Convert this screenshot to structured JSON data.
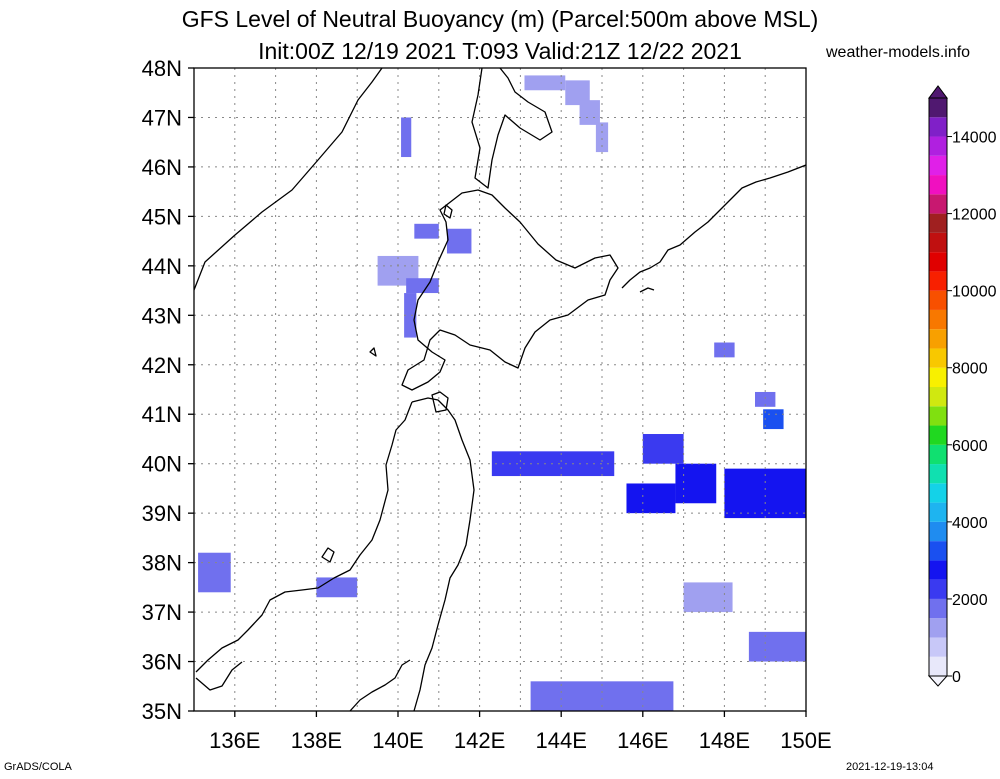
{
  "title_line1": "GFS Level of Neutral Buoyancy (m) (Parcel:500m above MSL)",
  "title_line2": "Init:00Z 12/19 2021 T:093 Valid:21Z 12/22 2021",
  "credit": "weather-models.info",
  "footer_left": "GrADS/COLA",
  "footer_right": "2021-12-19-13:04",
  "map": {
    "lon_range": [
      135,
      150
    ],
    "lat_range": [
      35,
      48
    ],
    "lat_labels": [
      "35N",
      "36N",
      "37N",
      "38N",
      "39N",
      "40N",
      "41N",
      "42N",
      "43N",
      "44N",
      "45N",
      "46N",
      "47N",
      "48N"
    ],
    "lon_labels": [
      "136E",
      "138E",
      "140E",
      "142E",
      "144E",
      "146E",
      "148E",
      "150E"
    ]
  },
  "colorbar": {
    "labels": [
      "0",
      "2000",
      "4000",
      "6000",
      "8000",
      "10000",
      "12000",
      "14000"
    ],
    "colors": [
      "#e8e8fa",
      "#c8c8f8",
      "#a0a0f0",
      "#7070ee",
      "#3a3af0",
      "#1414f0",
      "#1a50f0",
      "#1f8cf0",
      "#1eb4f0",
      "#14d2e8",
      "#10e0b0",
      "#10e070",
      "#20d820",
      "#80e010",
      "#d0e810",
      "#f8f000",
      "#f8c800",
      "#f8a000",
      "#f87800",
      "#f85000",
      "#f82000",
      "#e00000",
      "#c01010",
      "#a02020",
      "#c81870",
      "#f010c0",
      "#e020e8",
      "#b020e0",
      "#8020c8",
      "#501870"
    ]
  },
  "chart_data": {
    "type": "heatmap",
    "units": "m",
    "value_range": [
      0,
      15000
    ],
    "cells_deg": [
      {
        "lon": 143.6,
        "lat": 47.7,
        "w": 1.0,
        "h": 0.3,
        "value": 1400
      },
      {
        "lon": 144.4,
        "lat": 47.5,
        "w": 0.6,
        "h": 0.5,
        "value": 1300
      },
      {
        "lon": 144.7,
        "lat": 47.1,
        "w": 0.5,
        "h": 0.5,
        "value": 1300
      },
      {
        "lon": 145.0,
        "lat": 46.6,
        "w": 0.3,
        "h": 0.6,
        "value": 1300
      },
      {
        "lon": 140.2,
        "lat": 46.6,
        "w": 0.25,
        "h": 0.8,
        "value": 1500
      },
      {
        "lon": 140.7,
        "lat": 44.7,
        "w": 0.6,
        "h": 0.3,
        "value": 1500
      },
      {
        "lon": 141.5,
        "lat": 44.5,
        "w": 0.6,
        "h": 0.5,
        "value": 1600
      },
      {
        "lon": 140.0,
        "lat": 43.9,
        "w": 1.0,
        "h": 0.6,
        "value": 1400
      },
      {
        "lon": 140.6,
        "lat": 43.6,
        "w": 0.8,
        "h": 0.3,
        "value": 1700
      },
      {
        "lon": 140.3,
        "lat": 43.0,
        "w": 0.3,
        "h": 0.9,
        "value": 1600
      },
      {
        "lon": 143.8,
        "lat": 40.0,
        "w": 3.0,
        "h": 0.5,
        "value": 2300
      },
      {
        "lon": 146.5,
        "lat": 40.3,
        "w": 1.0,
        "h": 0.6,
        "value": 2400
      },
      {
        "lon": 147.3,
        "lat": 39.6,
        "w": 1.0,
        "h": 0.8,
        "value": 2500
      },
      {
        "lon": 146.2,
        "lat": 39.3,
        "w": 1.2,
        "h": 0.6,
        "value": 2600
      },
      {
        "lon": 149.0,
        "lat": 39.4,
        "w": 2.0,
        "h": 1.0,
        "value": 2700
      },
      {
        "lon": 149.2,
        "lat": 40.9,
        "w": 0.5,
        "h": 0.4,
        "value": 3100
      },
      {
        "lon": 149.0,
        "lat": 41.3,
        "w": 0.5,
        "h": 0.3,
        "value": 1600
      },
      {
        "lon": 148.0,
        "lat": 42.3,
        "w": 0.5,
        "h": 0.3,
        "value": 1500
      },
      {
        "lon": 135.5,
        "lat": 37.8,
        "w": 0.8,
        "h": 0.8,
        "value": 1500
      },
      {
        "lon": 138.5,
        "lat": 37.5,
        "w": 1.0,
        "h": 0.4,
        "value": 1800
      },
      {
        "lon": 147.6,
        "lat": 37.3,
        "w": 1.2,
        "h": 0.6,
        "value": 1400
      },
      {
        "lon": 149.3,
        "lat": 36.3,
        "w": 1.4,
        "h": 0.6,
        "value": 1500
      },
      {
        "lon": 145.0,
        "lat": 35.3,
        "w": 3.5,
        "h": 0.6,
        "value": 1500
      }
    ]
  }
}
